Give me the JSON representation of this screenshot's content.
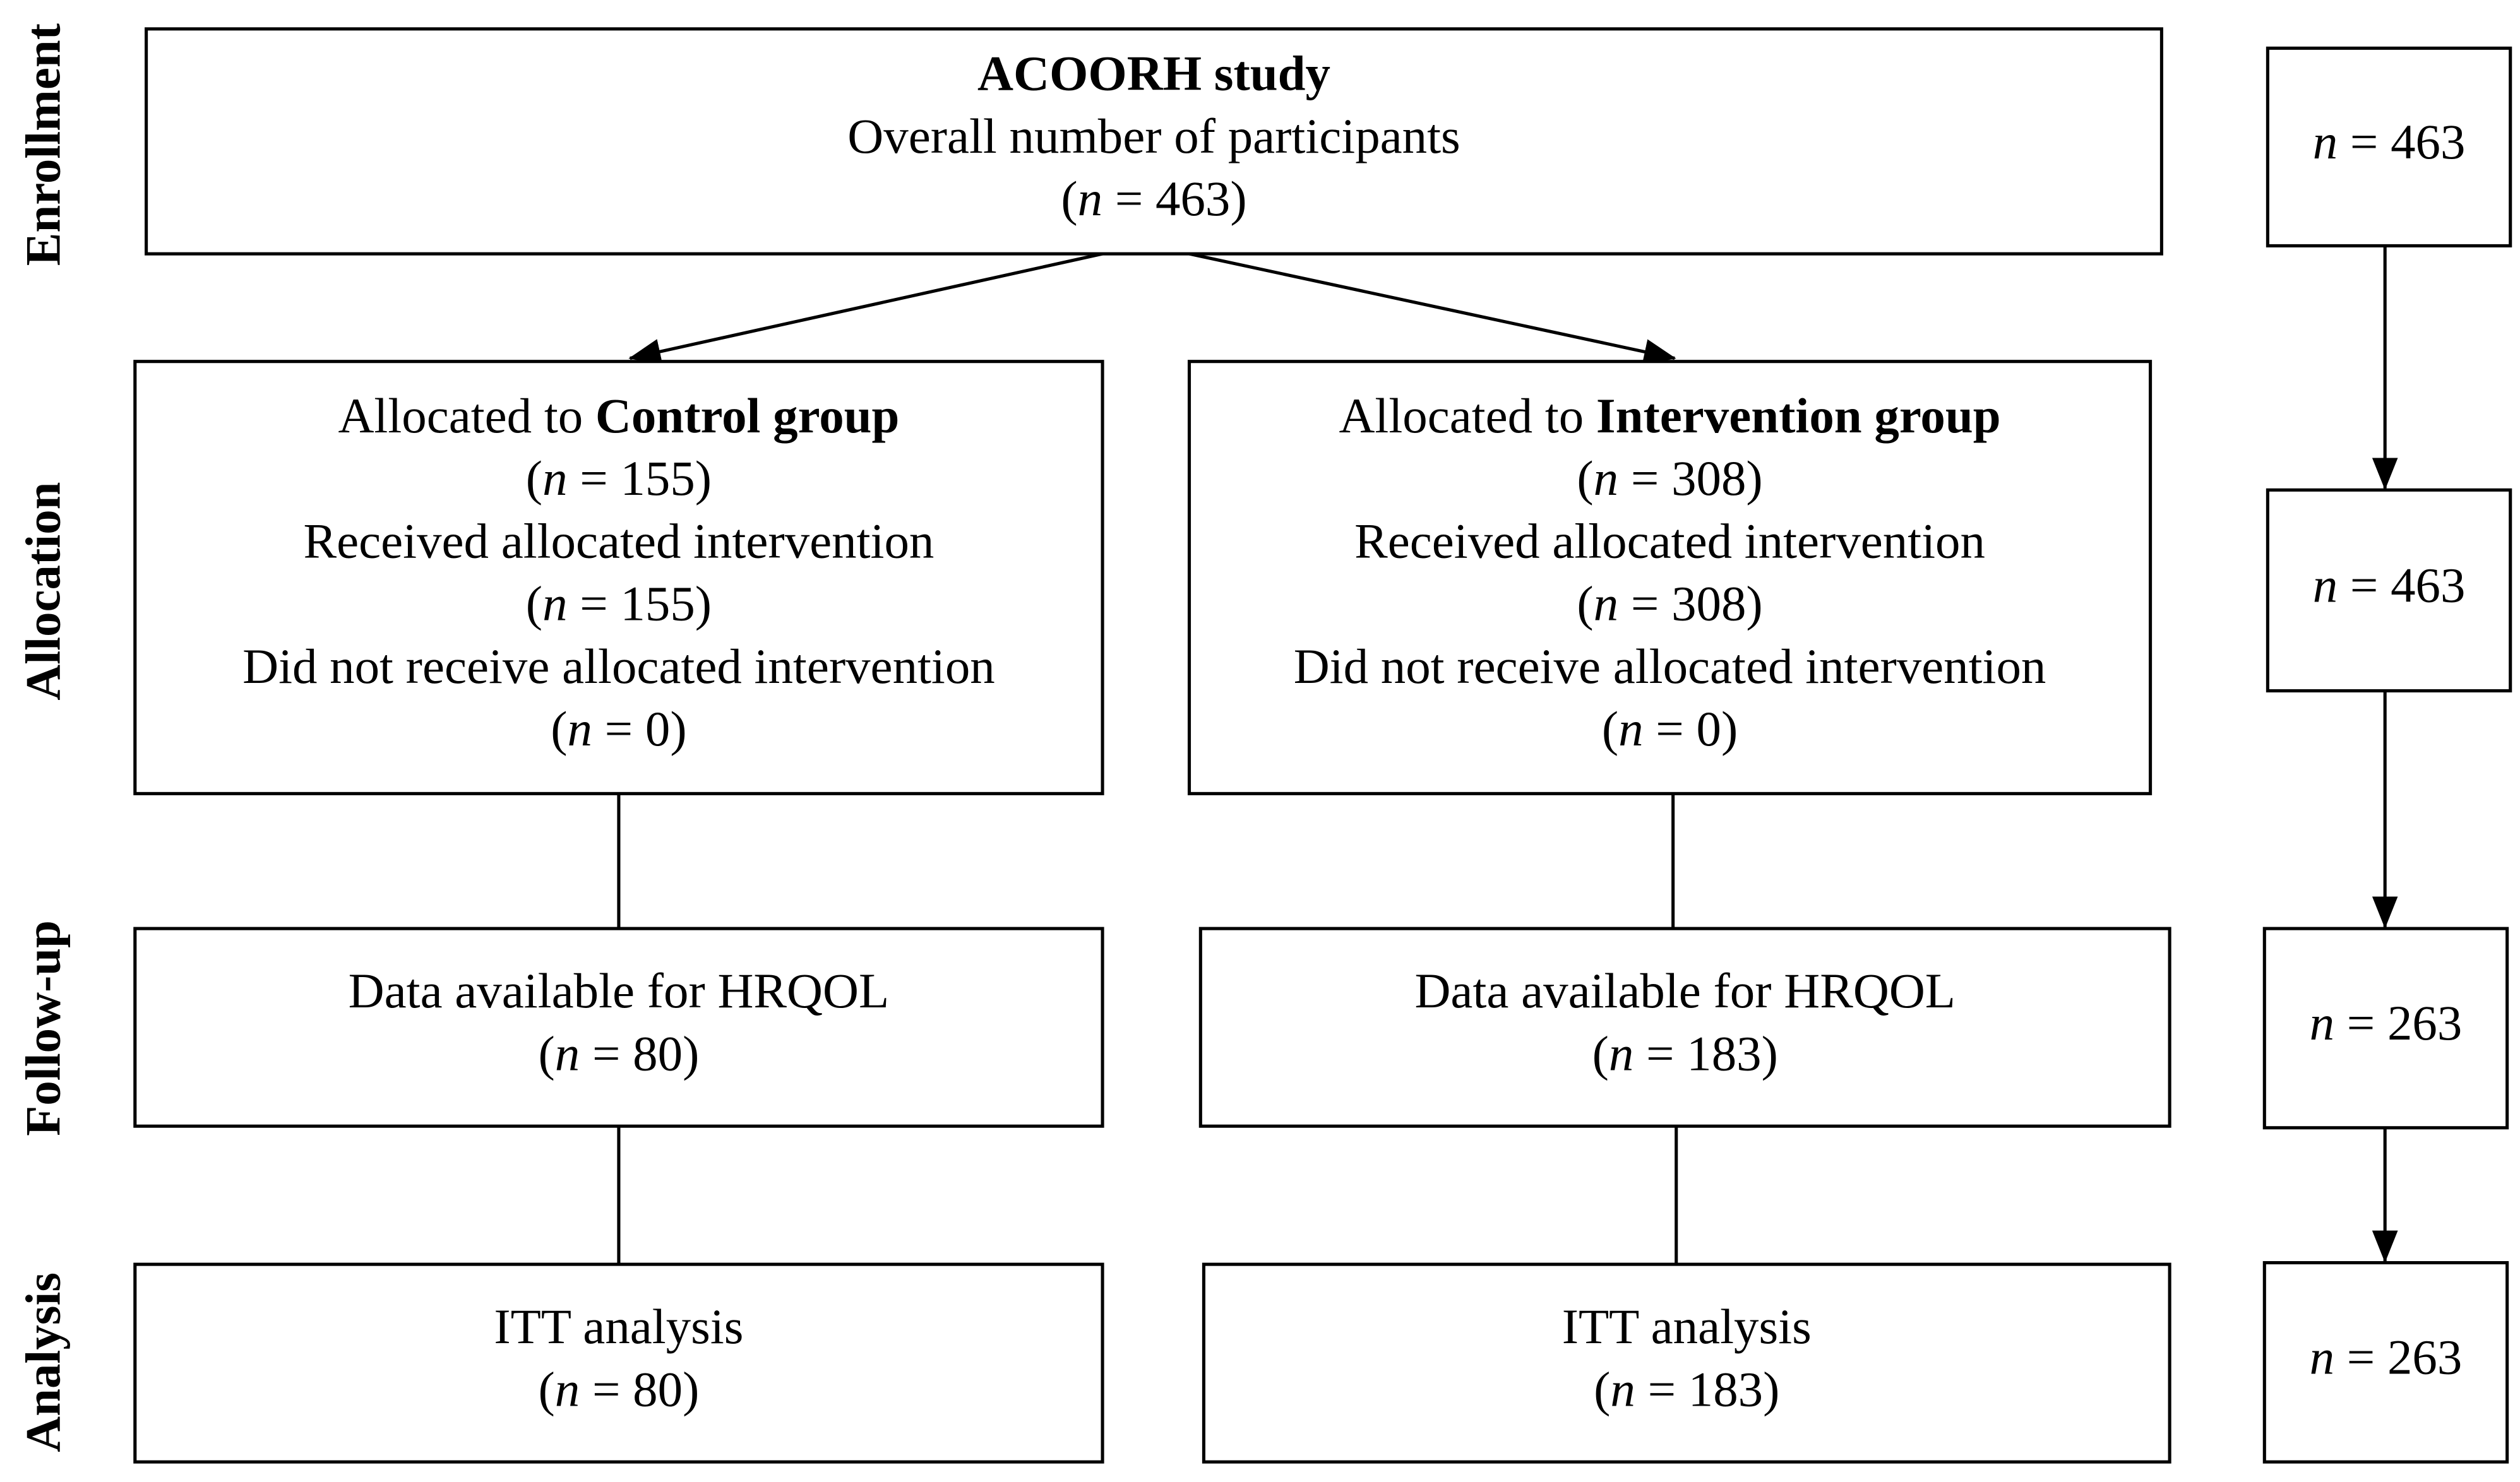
{
  "stages": [
    "Enrollment",
    "Allocation",
    "Follow-up",
    "Analysis"
  ],
  "boxes": [
    {
      "lines": [
        [
          {
            "text": "ACOORH study",
            "bold": true
          }
        ],
        [
          {
            "text": "Overall number of participants"
          }
        ],
        [
          {
            "text": "("
          },
          {
            "text": "n",
            "italic": true
          },
          {
            "text": " = 463)"
          }
        ]
      ]
    },
    {
      "lines": [
        [
          {
            "text": "Allocated to "
          },
          {
            "text": "Control group",
            "bold": true
          }
        ],
        [
          {
            "text": "("
          },
          {
            "text": "n",
            "italic": true
          },
          {
            "text": " = 155)"
          }
        ],
        [
          {
            "text": "Received allocated intervention"
          }
        ],
        [
          {
            "text": "("
          },
          {
            "text": "n",
            "italic": true
          },
          {
            "text": " = 155)"
          }
        ],
        [
          {
            "text": "Did not receive allocated intervention"
          }
        ],
        [
          {
            "text": "("
          },
          {
            "text": "n",
            "italic": true
          },
          {
            "text": " = 0)"
          }
        ]
      ]
    },
    {
      "lines": [
        [
          {
            "text": "Allocated to "
          },
          {
            "text": "Intervention group",
            "bold": true
          }
        ],
        [
          {
            "text": "("
          },
          {
            "text": "n",
            "italic": true
          },
          {
            "text": " = 308)"
          }
        ],
        [
          {
            "text": "Received allocated intervention"
          }
        ],
        [
          {
            "text": "("
          },
          {
            "text": "n",
            "italic": true
          },
          {
            "text": " = 308)"
          }
        ],
        [
          {
            "text": "Did not receive allocated intervention"
          }
        ],
        [
          {
            "text": "("
          },
          {
            "text": "n",
            "italic": true
          },
          {
            "text": " = 0)"
          }
        ]
      ]
    },
    {
      "lines": [
        [
          {
            "text": "Data available for HRQOL"
          }
        ],
        [
          {
            "text": "("
          },
          {
            "text": "n",
            "italic": true
          },
          {
            "text": " = 80)"
          }
        ]
      ]
    },
    {
      "lines": [
        [
          {
            "text": "Data available for HRQOL"
          }
        ],
        [
          {
            "text": "("
          },
          {
            "text": "n",
            "italic": true
          },
          {
            "text": " = 183)"
          }
        ]
      ]
    },
    {
      "lines": [
        [
          {
            "text": "ITT analysis"
          }
        ],
        [
          {
            "text": "("
          },
          {
            "text": "n",
            "italic": true
          },
          {
            "text": " = 80)"
          }
        ]
      ]
    },
    {
      "lines": [
        [
          {
            "text": "ITT analysis"
          }
        ],
        [
          {
            "text": "("
          },
          {
            "text": "n",
            "italic": true
          },
          {
            "text": " = 183)"
          }
        ]
      ]
    },
    {
      "lines": [
        [
          {
            "text": "n",
            "italic": true
          },
          {
            "text": " = 463"
          }
        ]
      ]
    },
    {
      "lines": [
        [
          {
            "text": "n",
            "italic": true
          },
          {
            "text": " = 463"
          }
        ]
      ]
    },
    {
      "lines": [
        [
          {
            "text": "n",
            "italic": true
          },
          {
            "text": " = 263"
          }
        ]
      ]
    },
    {
      "lines": [
        [
          {
            "text": "n",
            "italic": true
          },
          {
            "text": " = 263"
          }
        ]
      ]
    }
  ]
}
